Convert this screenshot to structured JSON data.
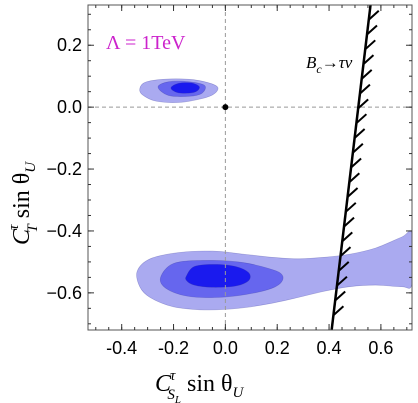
{
  "chart_data": {
    "type": "contour",
    "xlim": [
      -0.53,
      0.72
    ],
    "ylim": [
      -0.72,
      0.33
    ],
    "x_ticks": [
      -0.4,
      -0.2,
      0.0,
      0.2,
      0.4,
      0.6
    ],
    "x_tick_labels": [
      "-0.4",
      "-0.2",
      "0.0",
      "0.2",
      "0.4",
      "0.6"
    ],
    "y_ticks": [
      0.2,
      0.0,
      -0.2,
      -0.4,
      -0.6
    ],
    "y_tick_labels": [
      "0.2",
      "0.0",
      "−0.2",
      "−0.4",
      "−0.6"
    ],
    "xlabel": {
      "main": "C",
      "sup": "τ",
      "sub": "S",
      "subsub": "L",
      "rest": " sin θ",
      "rest_sub": "U"
    },
    "ylabel": {
      "main": "C",
      "sup": "τ",
      "sub": "T",
      "rest": " sin θ",
      "rest_sub": "U"
    },
    "annotation": {
      "text": "Λ = 1TeV",
      "color": "#cc22cc"
    },
    "constraint_label": {
      "b": "B",
      "bsub": "c",
      "arrow": "→",
      "rest": "τν"
    },
    "sm_point": [
      0.0,
      0.0
    ],
    "reference_lines": {
      "x": 0.0,
      "y": 0.0
    },
    "constraint_line": {
      "points": [
        [
          0.41,
          -0.72
        ],
        [
          0.56,
          0.33
        ]
      ],
      "hatch_side": "right"
    },
    "colors": {
      "outer": "#aaaaf0",
      "middle": "#6666ee",
      "inner": "#1a1aee",
      "constraint": "#000000",
      "reference": "#999999"
    },
    "regions": [
      {
        "name": "upper",
        "outer": [
          [
            -0.33,
            0.06
          ],
          [
            -0.31,
            0.08
          ],
          [
            -0.24,
            0.09
          ],
          [
            -0.14,
            0.09
          ],
          [
            -0.07,
            0.08
          ],
          [
            -0.03,
            0.065
          ],
          [
            -0.04,
            0.045
          ],
          [
            -0.08,
            0.03
          ],
          [
            -0.18,
            0.015
          ],
          [
            -0.27,
            0.02
          ],
          [
            -0.32,
            0.04
          ]
        ],
        "middle": [
          [
            -0.26,
            0.065
          ],
          [
            -0.22,
            0.082
          ],
          [
            -0.14,
            0.082
          ],
          [
            -0.08,
            0.07
          ],
          [
            -0.09,
            0.045
          ],
          [
            -0.14,
            0.035
          ],
          [
            -0.22,
            0.038
          ]
        ],
        "inner": [
          [
            -0.21,
            0.062
          ],
          [
            -0.18,
            0.077
          ],
          [
            -0.13,
            0.078
          ],
          [
            -0.1,
            0.065
          ],
          [
            -0.12,
            0.048
          ],
          [
            -0.18,
            0.046
          ]
        ]
      },
      {
        "name": "lower",
        "outer": [
          [
            -0.34,
            -0.53
          ],
          [
            -0.29,
            -0.49
          ],
          [
            -0.18,
            -0.47
          ],
          [
            -0.05,
            -0.465
          ],
          [
            0.07,
            -0.475
          ],
          [
            0.18,
            -0.485
          ],
          [
            0.28,
            -0.49
          ],
          [
            0.38,
            -0.485
          ],
          [
            0.48,
            -0.475
          ],
          [
            0.58,
            -0.455
          ],
          [
            0.68,
            -0.42
          ],
          [
            0.72,
            -0.41
          ],
          [
            0.72,
            -0.57
          ],
          [
            0.68,
            -0.58
          ],
          [
            0.58,
            -0.575
          ],
          [
            0.48,
            -0.58
          ],
          [
            0.38,
            -0.595
          ],
          [
            0.28,
            -0.615
          ],
          [
            0.17,
            -0.635
          ],
          [
            0.05,
            -0.65
          ],
          [
            -0.08,
            -0.655
          ],
          [
            -0.2,
            -0.645
          ],
          [
            -0.29,
            -0.615
          ],
          [
            -0.33,
            -0.58
          ]
        ],
        "middle": [
          [
            -0.25,
            -0.55
          ],
          [
            -0.2,
            -0.505
          ],
          [
            -0.08,
            -0.495
          ],
          [
            0.05,
            -0.5
          ],
          [
            0.14,
            -0.515
          ],
          [
            0.21,
            -0.535
          ],
          [
            0.22,
            -0.56
          ],
          [
            0.18,
            -0.585
          ],
          [
            0.08,
            -0.605
          ],
          [
            -0.04,
            -0.615
          ],
          [
            -0.15,
            -0.61
          ],
          [
            -0.23,
            -0.585
          ]
        ],
        "inner": [
          [
            -0.15,
            -0.545
          ],
          [
            -0.12,
            -0.515
          ],
          [
            -0.04,
            -0.508
          ],
          [
            0.04,
            -0.515
          ],
          [
            0.09,
            -0.535
          ],
          [
            0.09,
            -0.56
          ],
          [
            0.04,
            -0.578
          ],
          [
            -0.05,
            -0.582
          ],
          [
            -0.12,
            -0.575
          ],
          [
            -0.15,
            -0.56
          ]
        ]
      }
    ]
  }
}
